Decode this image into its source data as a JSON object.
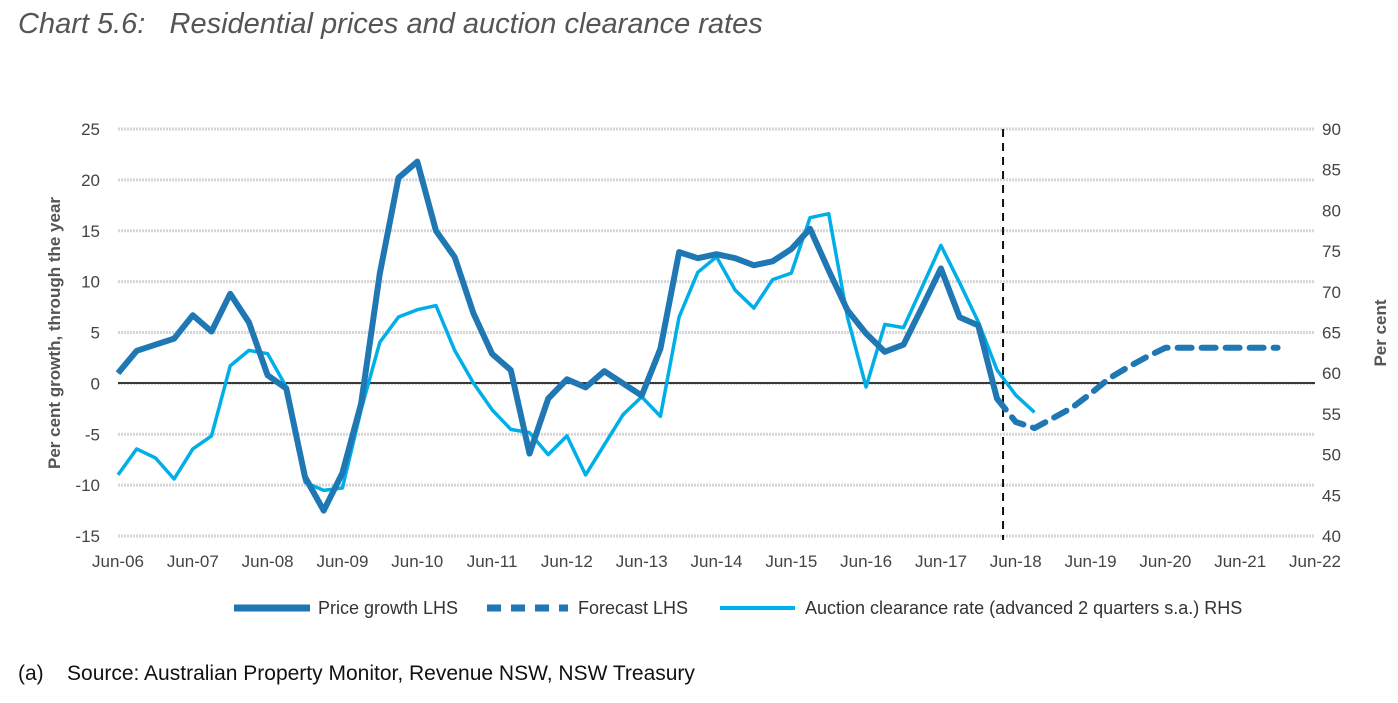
{
  "title": "Chart 5.6:   Residential prices and auction clearance rates",
  "source": "(a)    Source: Australian Property Monitor, Revenue NSW, NSW Treasury",
  "chart_data": {
    "type": "line",
    "title": "Chart 5.6:   Residential prices and auction clearance rates",
    "ylabel": "Per cent growth, through the year",
    "y2label": "Per cent",
    "ylim": [
      -15,
      25
    ],
    "y2lim": [
      40,
      90
    ],
    "yticks": [
      "25",
      "20",
      "15",
      "10",
      "5",
      "0",
      "-5",
      "-10",
      "-15"
    ],
    "y2ticks": [
      "90",
      "85",
      "80",
      "75",
      "70",
      "65",
      "60",
      "55",
      "50",
      "45",
      "40"
    ],
    "xticks": [
      "Jun-06",
      "Jun-07",
      "Jun-08",
      "Jun-09",
      "Jun-10",
      "Jun-11",
      "Jun-12",
      "Jun-13",
      "Jun-14",
      "Jun-15",
      "Jun-16",
      "Jun-17",
      "Jun-18",
      "Jun-19",
      "Jun-20",
      "Jun-21",
      "Jun-22"
    ],
    "x_frequency": "quarterly",
    "grid": true,
    "legend_position": "bottom",
    "forecast_marker": "Mar-18",
    "colors": {
      "price": "#1f77b4",
      "forecast": "#1f77b4",
      "auction": "#00aee8"
    },
    "series": [
      {
        "name": "Price growth LHS",
        "axis": "left",
        "x_start": "Jun-06",
        "values": [
          1.0,
          3.2,
          3.8,
          4.4,
          6.7,
          5.1,
          8.8,
          6.0,
          0.8,
          -0.5,
          -9.2,
          -12.5,
          -8.8,
          -2.0,
          10.8,
          20.2,
          21.8,
          15.0,
          12.4,
          6.9,
          2.9,
          1.3,
          -6.9,
          -1.5,
          0.4,
          -0.4,
          1.2,
          0.0,
          -1.2,
          3.4,
          12.9,
          12.3,
          12.7,
          12.3,
          11.6,
          12.0,
          13.2,
          15.2,
          11.1,
          7.2,
          4.9,
          3.1,
          3.8,
          7.5,
          11.3,
          6.5,
          5.7,
          -1.5
        ]
      },
      {
        "name": "Forecast LHS",
        "axis": "left",
        "x_start": "Mar-18",
        "style": "dashed",
        "values": [
          -1.5,
          -3.8,
          -4.4,
          -3.4,
          -2.4,
          -1.0,
          0.5,
          1.6,
          2.6,
          3.5,
          3.5,
          3.5,
          3.5,
          3.5,
          3.5,
          3.5
        ]
      },
      {
        "name": "Auction clearance rate (advanced 2 quarters s.a.) RHS",
        "axis": "right",
        "x_start": "Jun-06",
        "values": [
          47.5,
          50.7,
          49.6,
          47.0,
          50.7,
          52.3,
          60.9,
          62.8,
          62.4,
          58.3,
          46.6,
          45.6,
          45.9,
          55.5,
          63.8,
          66.9,
          67.8,
          68.3,
          62.8,
          58.8,
          55.5,
          53.1,
          52.7,
          50.0,
          52.3,
          47.5,
          51.2,
          54.9,
          57.1,
          54.7,
          66.9,
          72.4,
          74.3,
          70.2,
          68.0,
          71.5,
          72.3,
          79.1,
          79.6,
          66.9,
          58.3,
          66.0,
          65.6,
          70.6,
          75.7,
          71.1,
          66.3,
          60.4,
          57.3,
          55.2
        ]
      }
    ]
  }
}
